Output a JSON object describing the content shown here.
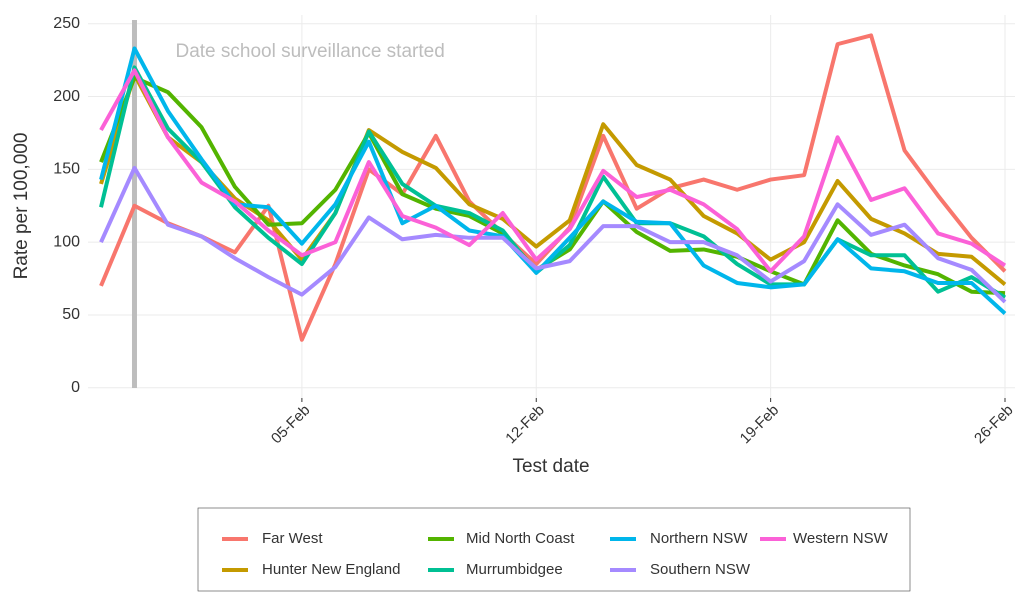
{
  "chart_data": {
    "type": "line",
    "x_label": "Test date",
    "y_label": "Rate per 100,000",
    "categories": [
      null,
      null,
      null,
      null,
      null,
      null,
      "05-Feb",
      null,
      null,
      null,
      null,
      null,
      null,
      "12-Feb",
      null,
      null,
      null,
      null,
      null,
      null,
      "19-Feb",
      null,
      null,
      null,
      null,
      null,
      null,
      "26-Feb"
    ],
    "annotation": {
      "text": "Date school surveillance started",
      "index": 1,
      "color": "#bdbdbd"
    },
    "ylim": [
      -7,
      256
    ],
    "yticks": [
      0,
      50,
      100,
      150,
      200,
      250
    ],
    "grid": true,
    "legend": "bottom",
    "series": [
      {
        "name": "Far West",
        "color": "#F8766D",
        "values": [
          70,
          125,
          113,
          104,
          93,
          125,
          33,
          85,
          150,
          133,
          173,
          128,
          106,
          85,
          110,
          173,
          123,
          137,
          143,
          136,
          143,
          146,
          236,
          242,
          163,
          132,
          103,
          80
        ]
      },
      {
        "name": "Hunter New England",
        "color": "#C49A00",
        "values": [
          140,
          215,
          172,
          155,
          130,
          115,
          88,
          120,
          177,
          162,
          151,
          126,
          116,
          97,
          115,
          181,
          153,
          143,
          118,
          106,
          88,
          100,
          142,
          116,
          106,
          92,
          90,
          71
        ]
      },
      {
        "name": "Mid North Coast",
        "color": "#53B400",
        "values": [
          155,
          213,
          203,
          179,
          138,
          112,
          113,
          136,
          175,
          133,
          123,
          118,
          106,
          81,
          95,
          128,
          107,
          94,
          95,
          90,
          80,
          71,
          115,
          92,
          84,
          78,
          66,
          65
        ]
      },
      {
        "name": "Murrumbidgee",
        "color": "#00C094",
        "values": [
          124,
          220,
          178,
          155,
          124,
          103,
          85,
          120,
          176,
          140,
          125,
          120,
          108,
          79,
          98,
          145,
          113,
          113,
          104,
          85,
          71,
          71,
          102,
          91,
          91,
          66,
          76,
          62
        ]
      },
      {
        "name": "Northern NSW",
        "color": "#00B6EB",
        "values": [
          143,
          233,
          190,
          157,
          126,
          124,
          99,
          126,
          169,
          113,
          125,
          108,
          104,
          79,
          103,
          128,
          114,
          113,
          84,
          72,
          69,
          71,
          102,
          82,
          80,
          72,
          72,
          51
        ]
      },
      {
        "name": "Southern NSW",
        "color": "#A58AFF",
        "values": [
          100,
          151,
          112,
          104,
          89,
          76,
          64,
          83,
          117,
          102,
          105,
          103,
          103,
          82,
          87,
          111,
          111,
          100,
          100,
          91,
          73,
          87,
          126,
          105,
          112,
          89,
          81,
          59
        ]
      },
      {
        "name": "Western NSW",
        "color": "#FB61D7",
        "values": [
          177,
          218,
          172,
          141,
          128,
          108,
          91,
          100,
          155,
          118,
          110,
          98,
          120,
          88,
          109,
          149,
          131,
          136,
          126,
          109,
          80,
          104,
          172,
          129,
          137,
          106,
          99,
          84
        ]
      }
    ]
  }
}
